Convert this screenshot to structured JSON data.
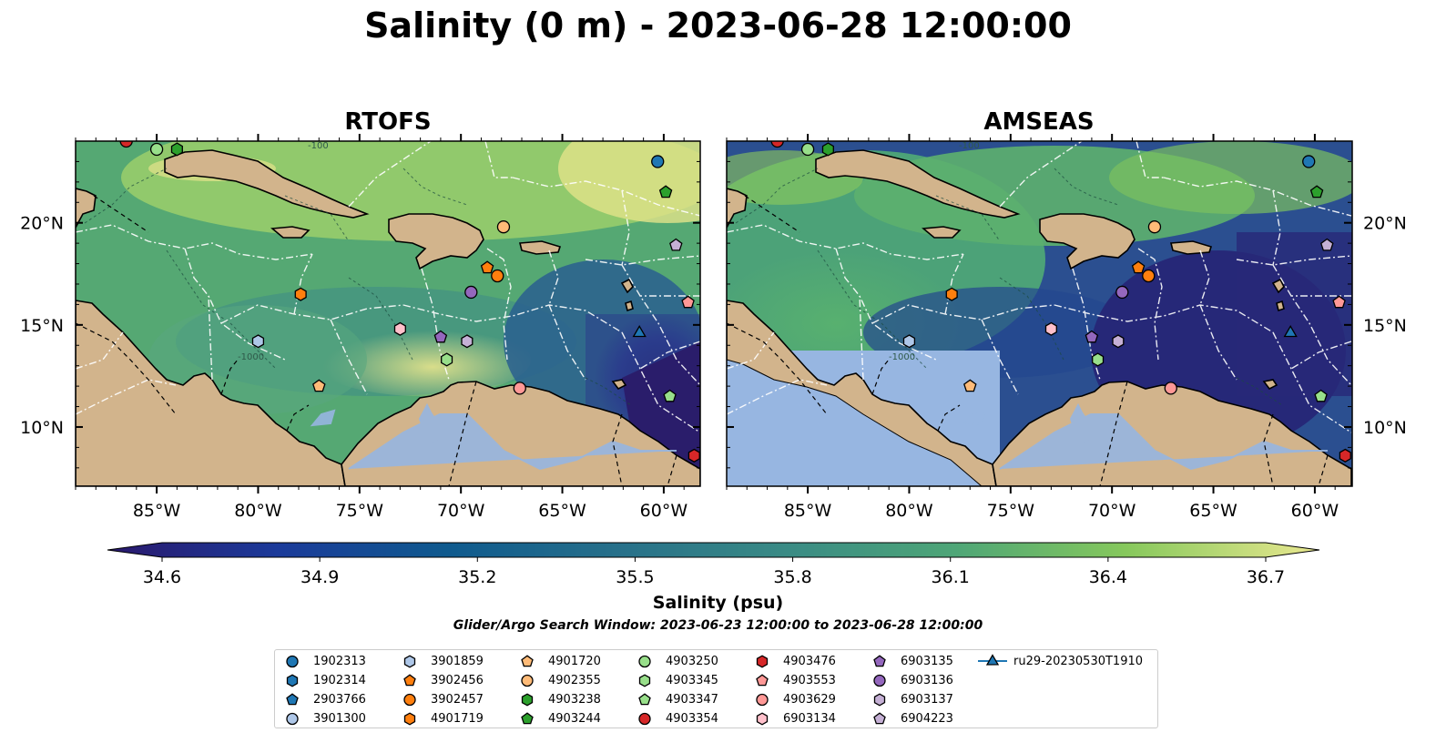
{
  "title": "Salinity (0 m) - 2023-06-28 12:00:00",
  "panels": [
    {
      "title": "RTOFS",
      "model": "rtofs"
    },
    {
      "title": "AMSEAS",
      "model": "amseas"
    }
  ],
  "axes": {
    "lon_ticks": [
      "85°W",
      "80°W",
      "75°W",
      "70°W",
      "65°W",
      "60°W"
    ],
    "lat_ticks": [
      "20°N",
      "15°N",
      "10°N"
    ],
    "lon_range": [
      -89,
      -58.2
    ],
    "lat_range": [
      7.1,
      24.0
    ]
  },
  "contour_labels": [
    "-1000",
    "-100"
  ],
  "colorbar": {
    "label": "Salinity (psu)",
    "min": 34.6,
    "max": 36.7,
    "tick_labels": [
      "34.6",
      "34.9",
      "35.2",
      "35.5",
      "35.8",
      "36.1",
      "36.4",
      "36.7"
    ],
    "colormap": "haline"
  },
  "search_window": "Glider/Argo Search Window: 2023-06-23 12:00:00 to 2023-06-28 12:00:00",
  "colors": {
    "land": "#d2b48c",
    "rivers_lakes": "#97b6e1",
    "contour": "#ffffff"
  },
  "platforms": [
    {
      "id": "1902313",
      "marker": "circle",
      "color": "#1f77b4",
      "lon": -60.3,
      "lat": 23.0
    },
    {
      "id": "1902314",
      "marker": "hexagon",
      "color": "#1f77b4",
      "lon": null,
      "lat": null
    },
    {
      "id": "2903766",
      "marker": "pentagon",
      "color": "#1f77b4",
      "lon": null,
      "lat": null
    },
    {
      "id": "3901300",
      "marker": "circle",
      "color": "#aec7e8",
      "lon": null,
      "lat": null
    },
    {
      "id": "3901859",
      "marker": "hexagon",
      "color": "#aec7e8",
      "lon": -80.0,
      "lat": 14.2
    },
    {
      "id": "3902456",
      "marker": "pentagon",
      "color": "#ff7f0e",
      "lon": -68.7,
      "lat": 17.8
    },
    {
      "id": "3902457",
      "marker": "circle",
      "color": "#ff7f0e",
      "lon": -68.2,
      "lat": 17.4
    },
    {
      "id": "4901719",
      "marker": "hexagon",
      "color": "#ff7f0e",
      "lon": -77.9,
      "lat": 16.5
    },
    {
      "id": "4901720",
      "marker": "pentagon",
      "color": "#ffbb78",
      "lon": -77.0,
      "lat": 12.0
    },
    {
      "id": "4902355",
      "marker": "circle",
      "color": "#ffbb78",
      "lon": -67.9,
      "lat": 19.8
    },
    {
      "id": "4903238",
      "marker": "hexagon",
      "color": "#2ca02c",
      "lon": -84.0,
      "lat": 23.6
    },
    {
      "id": "4903244",
      "marker": "pentagon",
      "color": "#2ca02c",
      "lon": -59.9,
      "lat": 21.5
    },
    {
      "id": "4903250",
      "marker": "circle",
      "color": "#98df8a",
      "lon": -85.0,
      "lat": 23.6
    },
    {
      "id": "4903345",
      "marker": "hexagon",
      "color": "#98df8a",
      "lon": -70.7,
      "lat": 13.3
    },
    {
      "id": "4903347",
      "marker": "pentagon",
      "color": "#98df8a",
      "lon": -59.7,
      "lat": 11.5
    },
    {
      "id": "4903354",
      "marker": "circle",
      "color": "#d62728",
      "lon": -86.5,
      "lat": 24.0
    },
    {
      "id": "4903476",
      "marker": "hexagon",
      "color": "#d62728",
      "lon": -58.5,
      "lat": 8.6
    },
    {
      "id": "4903553",
      "marker": "pentagon",
      "color": "#ff9896",
      "lon": -58.8,
      "lat": 16.1
    },
    {
      "id": "4903629",
      "marker": "circle",
      "color": "#ff9896",
      "lon": -67.1,
      "lat": 11.9
    },
    {
      "id": "6903134",
      "marker": "hexagon",
      "color": "#ffc0cb",
      "lon": -73.0,
      "lat": 14.8
    },
    {
      "id": "6903135",
      "marker": "pentagon",
      "color": "#9467bd",
      "lon": -71.0,
      "lat": 14.4
    },
    {
      "id": "6903136",
      "marker": "circle",
      "color": "#9467bd",
      "lon": -69.5,
      "lat": 16.6
    },
    {
      "id": "6903137",
      "marker": "hexagon",
      "color": "#c5b0d5",
      "lon": -69.7,
      "lat": 14.2
    },
    {
      "id": "6904223",
      "marker": "pentagon",
      "color": "#c5b0d5",
      "lon": -59.4,
      "lat": 18.9
    },
    {
      "id": "ru29-20230530T1910",
      "marker": "triangle",
      "color": "#1f77b4",
      "lon": -61.2,
      "lat": 14.6,
      "line": true
    }
  ]
}
